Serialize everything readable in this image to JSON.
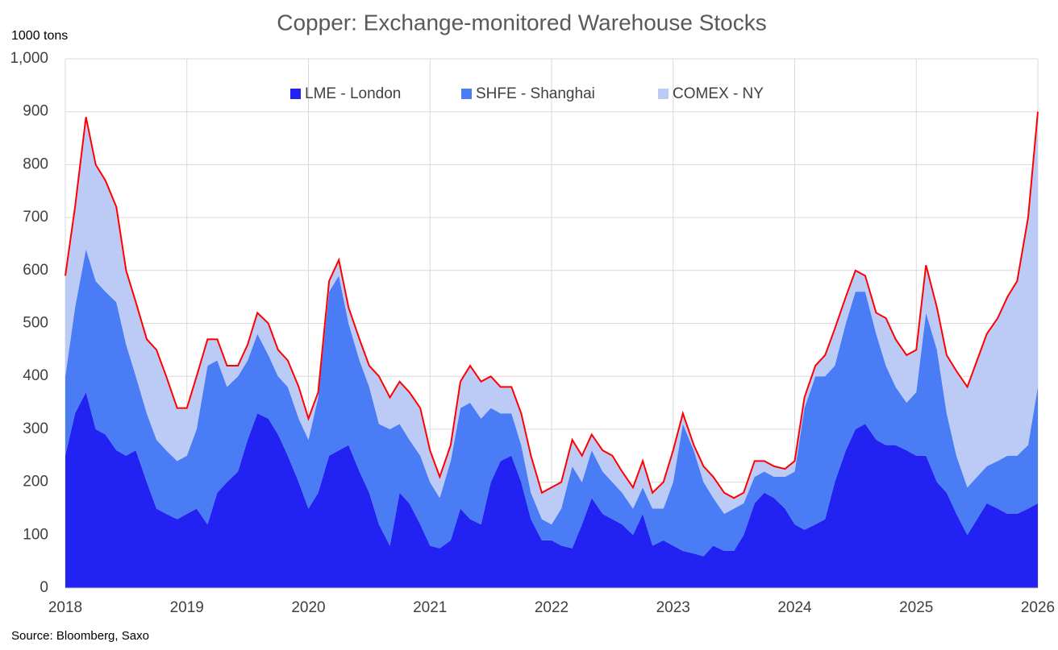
{
  "chart_data": {
    "type": "stacked_area",
    "title": "Copper: Exchange-monitored Warehouse Stocks",
    "y_label": "1000 tons",
    "source": "Source: Bloomberg, Saxo",
    "x": [
      2018,
      2018.08,
      2018.17,
      2018.25,
      2018.33,
      2018.42,
      2018.5,
      2018.58,
      2018.67,
      2018.75,
      2018.83,
      2018.92,
      2019,
      2019.08,
      2019.17,
      2019.25,
      2019.33,
      2019.42,
      2019.5,
      2019.58,
      2019.67,
      2019.75,
      2019.83,
      2019.92,
      2020,
      2020.08,
      2020.17,
      2020.25,
      2020.33,
      2020.42,
      2020.5,
      2020.58,
      2020.67,
      2020.75,
      2020.83,
      2020.92,
      2021,
      2021.08,
      2021.17,
      2021.25,
      2021.33,
      2021.42,
      2021.5,
      2021.58,
      2021.67,
      2021.75,
      2021.83,
      2021.92,
      2022,
      2022.08,
      2022.17,
      2022.25,
      2022.33,
      2022.42,
      2022.5,
      2022.58,
      2022.67,
      2022.75,
      2022.83,
      2022.92,
      2023,
      2023.08,
      2023.17,
      2023.25,
      2023.33,
      2023.42,
      2023.5,
      2023.58,
      2023.67,
      2023.75,
      2023.83,
      2023.92,
      2024,
      2024.08,
      2024.17,
      2024.25,
      2024.33,
      2024.42,
      2024.5,
      2024.58,
      2024.67,
      2024.75,
      2024.83,
      2024.92,
      2025,
      2025.08,
      2025.17,
      2025.25,
      2025.33,
      2025.42,
      2025.5,
      2025.58,
      2025.67,
      2025.75,
      2025.83,
      2025.92,
      2026
    ],
    "series": [
      {
        "name": "LME - London",
        "color": "#2222f2",
        "values": [
          250,
          330,
          370,
          300,
          290,
          260,
          250,
          260,
          200,
          150,
          140,
          130,
          140,
          150,
          120,
          180,
          200,
          220,
          280,
          330,
          320,
          290,
          250,
          200,
          150,
          180,
          250,
          260,
          270,
          220,
          180,
          120,
          80,
          180,
          160,
          120,
          80,
          75,
          90,
          150,
          130,
          120,
          200,
          240,
          250,
          200,
          130,
          90,
          90,
          80,
          75,
          120,
          170,
          140,
          130,
          120,
          100,
          140,
          80,
          90,
          80,
          70,
          65,
          60,
          80,
          70,
          70,
          100,
          160,
          180,
          170,
          150,
          120,
          110,
          120,
          130,
          200,
          260,
          300,
          310,
          280,
          270,
          270,
          260,
          250,
          250,
          200,
          180,
          140,
          100,
          130,
          160,
          150,
          140,
          140,
          150,
          160
        ]
      },
      {
        "name": "SHFE - Shanghai",
        "color": "#4a7cf5",
        "values": [
          150,
          200,
          270,
          280,
          270,
          280,
          210,
          140,
          130,
          130,
          120,
          110,
          110,
          150,
          300,
          250,
          180,
          180,
          150,
          150,
          120,
          110,
          130,
          120,
          130,
          180,
          310,
          330,
          230,
          210,
          200,
          190,
          220,
          130,
          120,
          130,
          120,
          95,
          150,
          190,
          220,
          200,
          140,
          90,
          80,
          70,
          50,
          40,
          30,
          70,
          155,
          80,
          90,
          80,
          70,
          60,
          50,
          50,
          70,
          60,
          120,
          240,
          195,
          140,
          90,
          70,
          80,
          60,
          50,
          40,
          40,
          60,
          100,
          230,
          280,
          270,
          220,
          240,
          260,
          250,
          200,
          150,
          110,
          90,
          120,
          270,
          250,
          150,
          110,
          90,
          80,
          70,
          90,
          110,
          110,
          120,
          220
        ]
      },
      {
        "name": "COMEX - NY",
        "color": "#bccbf6",
        "values": [
          190,
          190,
          250,
          220,
          210,
          180,
          140,
          140,
          140,
          170,
          140,
          100,
          90,
          100,
          50,
          40,
          40,
          20,
          30,
          40,
          60,
          50,
          50,
          60,
          40,
          10,
          20,
          30,
          30,
          40,
          40,
          90,
          60,
          80,
          90,
          90,
          60,
          40,
          30,
          50,
          70,
          70,
          60,
          50,
          50,
          60,
          70,
          50,
          70,
          50,
          50,
          50,
          30,
          40,
          50,
          40,
          40,
          50,
          30,
          50,
          60,
          20,
          10,
          30,
          40,
          40,
          20,
          20,
          30,
          20,
          20,
          15,
          20,
          20,
          20,
          40,
          70,
          50,
          40,
          30,
          40,
          90,
          90,
          90,
          80,
          90,
          80,
          110,
          160,
          190,
          220,
          250,
          270,
          300,
          330,
          430,
          520
        ]
      }
    ],
    "outline_color": "#ff0000",
    "xlim": [
      2018,
      2026
    ],
    "xticks": [
      2018,
      2019,
      2020,
      2021,
      2022,
      2023,
      2024,
      2025,
      2026
    ],
    "ylim": [
      0,
      1000
    ],
    "yticks": [
      0,
      100,
      200,
      300,
      400,
      500,
      600,
      700,
      800,
      900,
      {
        "value": 1000,
        "label": "1,000"
      }
    ],
    "grid": true,
    "legend": "top"
  }
}
